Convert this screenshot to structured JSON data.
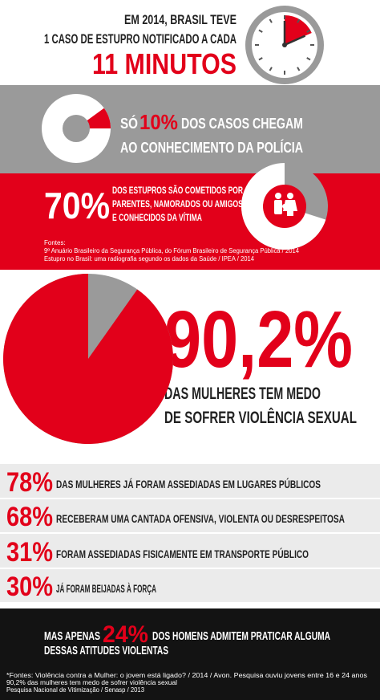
{
  "clock_section": {
    "line1": "EM 2014, BRASIL TEVE",
    "line2": "1 CASO DE ESTUPRO NOTIFICADO A CADA",
    "minutes": {
      "value": 11,
      "label": "11 MINUTOS"
    }
  },
  "police_section": {
    "prefix": "SÓ",
    "percent": {
      "value": 10,
      "label": "10%"
    },
    "line1_rest": "DOS CASOS CHEGAM",
    "line2": "AO CONHECIMENTO DA POLÍCIA"
  },
  "relatives_section": {
    "percent": {
      "value": 70,
      "label": "70%"
    },
    "lines": [
      "DOS ESTUPROS SÃO COMETIDOS POR",
      "PARENTES, NAMORADOS OU AMIGOS",
      "E CONHECIDOS DA VÍTIMA"
    ],
    "sources": [
      "Fontes:",
      "9º Anuário Brasileiro da Segurança Pública, do Fórum Brasileiro de Segurança Pública / 2014",
      "Estupro no Brasil: uma radiografia segundo os dados da Saúde / IPEA / 2014"
    ]
  },
  "fear_section": {
    "percent": {
      "value": 90.2,
      "label": "90,2%"
    },
    "lines": [
      "DAS MULHERES TEM MEDO",
      "DE SOFRER VIOLÊNCIA SEXUAL"
    ]
  },
  "stats": [
    {
      "percent": "78%",
      "text": "DAS MULHERES JÁ FORAM ASSEDIADAS EM LUGARES PÚBLICOS"
    },
    {
      "percent": "68%",
      "text": "RECEBERAM UMA CANTADA OFENSIVA, VIOLENTA OU DESRESPEITOSA"
    },
    {
      "percent": "31%",
      "text": "FORAM ASSEDIADAS FISICAMENTE EM TRANSPORTE PÚBLICO"
    },
    {
      "percent": "30%",
      "text": "JÁ FORAM BEIJADAS À FORÇA"
    }
  ],
  "men_section": {
    "prefix": "MAS APENAS",
    "percent": {
      "value": 24,
      "label": "24%"
    },
    "line1_rest": "DOS HOMENS ADMITEM PRATICAR ALGUMA",
    "line2": "DESSAS ATITUDES VIOLENTAS"
  },
  "footer": [
    "*Fontes: Violência contra a Mulher: o jovem está ligado? / 2014 / Avon. Pesquisa ouviu jovens entre 16 e 24 anos",
    "90,2% das mulheres tem medo de sofrer violência sexual",
    "Pesquisa Nacional de Vitimização / Senasp / 2013"
  ]
}
